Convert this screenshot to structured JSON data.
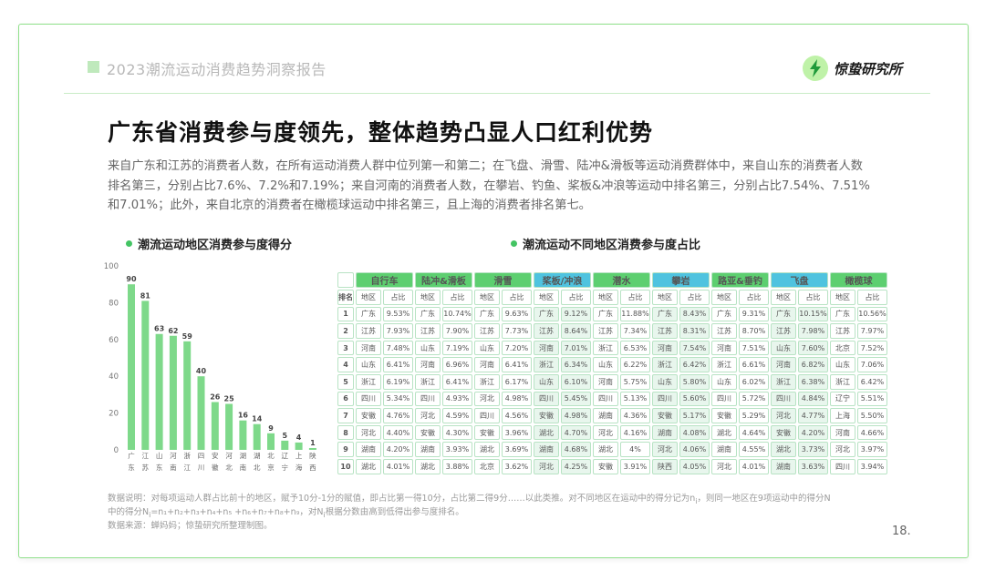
{
  "header": {
    "title": "2023潮流运动消费趋势洞察报告",
    "logo_text": "惊蛰研究所"
  },
  "main": {
    "title": "广东省消费参与度领先，整体趋势凸显人口红利优势",
    "body": "来自广东和江苏的消费者人数，在所有运动消费人群中位列第一和第二；在飞盘、滑雪、陆冲&滑板等运动消费群体中，来自山东的消费者人数排名第三，分别占比7.6%、7.2%和7.19%；来自河南的消费者人数，在攀岩、钓鱼、桨板&冲浪等运动中排名第三，分别占比7.54%、7.51%和7.01%；此外，来自北京的消费者在橄榄球运动中排名第三，且上海的消费者排名第七。",
    "left_subtitle": "潮流运动地区消费参与度得分",
    "right_subtitle": "潮流运动不同地区消费参与度占比",
    "note_line1": "数据说明：对每项运动人群占比前十的地区，赋予10分-1分的赋值，即占比第一得10分，占比第二得9分……以此类推。对不同地区在运动中的得分记为n",
    "note_sub_i": "i",
    "note_line1b": "，则同一地区在9项运动中的得分N",
    "note_line2": "=n₁+n₂+n₃+n₄+n₅ +n₆+n₇+n₈+n₉，对N",
    "note_line2b": "根据分数由高到低得出参与度排名。",
    "source": "数据来源：蝉妈妈；惊蛰研究所整理制图。",
    "page_number": "18."
  },
  "colors": {
    "accent": "#43c463",
    "bar": "#7ed98a",
    "tier1": "#5dcf70",
    "tier2": "#4fc3df"
  },
  "chart_data": [
    {
      "type": "bar",
      "title": "潮流运动地区消费参与度得分",
      "categories": [
        "广东",
        "江苏",
        "山东",
        "河南",
        "浙江",
        "四川",
        "安徽",
        "河北",
        "湖南",
        "湖北",
        "北京",
        "辽宁",
        "上海",
        "陕西"
      ],
      "category_lines": [
        [
          "广",
          "东"
        ],
        [
          "江",
          "苏"
        ],
        [
          "山",
          "东"
        ],
        [
          "河",
          "南"
        ],
        [
          "浙",
          "江"
        ],
        [
          "四",
          "川"
        ],
        [
          "安",
          "徽"
        ],
        [
          "河",
          "北"
        ],
        [
          "湖",
          "南"
        ],
        [
          "湖",
          "北"
        ],
        [
          "北",
          "京"
        ],
        [
          "辽",
          "宁"
        ],
        [
          "上",
          "海"
        ],
        [
          "陕",
          "西"
        ]
      ],
      "values": [
        90,
        81,
        63,
        62,
        59,
        40,
        26,
        25,
        16,
        14,
        9,
        5,
        4,
        1
      ],
      "ylim": [
        0,
        100
      ],
      "yticks": [
        0,
        20,
        40,
        60,
        80,
        100
      ]
    },
    {
      "type": "table",
      "title": "潮流运动不同地区消费参与度占比",
      "rank_header": "排名",
      "region_header": "地区",
      "share_header": "占比",
      "categories": [
        {
          "name": "自行车",
          "tier": 1
        },
        {
          "name": "陆冲&滑板",
          "tier": 1
        },
        {
          "name": "滑雪",
          "tier": 1
        },
        {
          "name": "桨板/冲浪",
          "tier": 2
        },
        {
          "name": "潜水",
          "tier": 1
        },
        {
          "name": "攀岩",
          "tier": 2
        },
        {
          "name": "路亚&垂钓",
          "tier": 1
        },
        {
          "name": "飞盘",
          "tier": 2
        },
        {
          "name": "橄榄球",
          "tier": 1
        }
      ],
      "rows": [
        {
          "rank": "1",
          "cells": [
            [
              "广东",
              "9.53%"
            ],
            [
              "广东",
              "10.74%"
            ],
            [
              "广东",
              "9.63%"
            ],
            [
              "广东",
              "9.12%"
            ],
            [
              "广东",
              "11.88%"
            ],
            [
              "广东",
              "8.43%"
            ],
            [
              "广东",
              "9.31%"
            ],
            [
              "广东",
              "10.15%"
            ],
            [
              "广东",
              "10.56%"
            ]
          ]
        },
        {
          "rank": "2",
          "cells": [
            [
              "江苏",
              "7.93%"
            ],
            [
              "江苏",
              "7.90%"
            ],
            [
              "江苏",
              "7.73%"
            ],
            [
              "江苏",
              "8.64%"
            ],
            [
              "江苏",
              "7.34%"
            ],
            [
              "江苏",
              "8.31%"
            ],
            [
              "江苏",
              "8.70%"
            ],
            [
              "江苏",
              "7.98%"
            ],
            [
              "江苏",
              "7.97%"
            ]
          ]
        },
        {
          "rank": "3",
          "cells": [
            [
              "河南",
              "7.48%"
            ],
            [
              "山东",
              "7.19%"
            ],
            [
              "山东",
              "7.20%"
            ],
            [
              "河南",
              "7.01%"
            ],
            [
              "浙江",
              "6.53%"
            ],
            [
              "河南",
              "7.54%"
            ],
            [
              "河南",
              "7.51%"
            ],
            [
              "山东",
              "7.60%"
            ],
            [
              "北京",
              "7.52%"
            ]
          ]
        },
        {
          "rank": "4",
          "cells": [
            [
              "山东",
              "6.41%"
            ],
            [
              "河南",
              "6.96%"
            ],
            [
              "河南",
              "6.41%"
            ],
            [
              "浙江",
              "6.34%"
            ],
            [
              "山东",
              "6.22%"
            ],
            [
              "浙江",
              "6.42%"
            ],
            [
              "浙江",
              "6.61%"
            ],
            [
              "河南",
              "6.82%"
            ],
            [
              "山东",
              "7.06%"
            ]
          ]
        },
        {
          "rank": "5",
          "cells": [
            [
              "浙江",
              "6.19%"
            ],
            [
              "浙江",
              "6.41%"
            ],
            [
              "浙江",
              "6.17%"
            ],
            [
              "山东",
              "6.10%"
            ],
            [
              "河南",
              "5.75%"
            ],
            [
              "山东",
              "5.80%"
            ],
            [
              "山东",
              "6.02%"
            ],
            [
              "浙江",
              "6.38%"
            ],
            [
              "浙江",
              "6.42%"
            ]
          ]
        },
        {
          "rank": "6",
          "cells": [
            [
              "四川",
              "5.34%"
            ],
            [
              "四川",
              "4.93%"
            ],
            [
              "河北",
              "4.98%"
            ],
            [
              "四川",
              "5.45%"
            ],
            [
              "四川",
              "5.13%"
            ],
            [
              "四川",
              "5.60%"
            ],
            [
              "四川",
              "5.72%"
            ],
            [
              "四川",
              "4.84%"
            ],
            [
              "辽宁",
              "5.51%"
            ]
          ]
        },
        {
          "rank": "7",
          "cells": [
            [
              "安徽",
              "4.76%"
            ],
            [
              "河北",
              "4.59%"
            ],
            [
              "四川",
              "4.56%"
            ],
            [
              "安徽",
              "4.98%"
            ],
            [
              "湖南",
              "4.36%"
            ],
            [
              "安徽",
              "5.17%"
            ],
            [
              "安徽",
              "5.29%"
            ],
            [
              "河北",
              "4.77%"
            ],
            [
              "上海",
              "5.50%"
            ]
          ]
        },
        {
          "rank": "8",
          "cells": [
            [
              "河北",
              "4.40%"
            ],
            [
              "安徽",
              "4.30%"
            ],
            [
              "安徽",
              "3.96%"
            ],
            [
              "湖北",
              "4.70%"
            ],
            [
              "河北",
              "4.16%"
            ],
            [
              "湖南",
              "4.08%"
            ],
            [
              "湖北",
              "4.64%"
            ],
            [
              "安徽",
              "4.20%"
            ],
            [
              "河南",
              "4.66%"
            ]
          ]
        },
        {
          "rank": "9",
          "cells": [
            [
              "湖南",
              "4.20%"
            ],
            [
              "湖南",
              "3.93%"
            ],
            [
              "湖北",
              "3.69%"
            ],
            [
              "湖南",
              "4.68%"
            ],
            [
              "湖北",
              "4%"
            ],
            [
              "河北",
              "4.06%"
            ],
            [
              "湖南",
              "4.55%"
            ],
            [
              "湖北",
              "3.73%"
            ],
            [
              "河北",
              "3.97%"
            ]
          ]
        },
        {
          "rank": "10",
          "cells": [
            [
              "湖北",
              "4.01%"
            ],
            [
              "湖北",
              "3.88%"
            ],
            [
              "北京",
              "3.62%"
            ],
            [
              "河北",
              "4.25%"
            ],
            [
              "安徽",
              "3.91%"
            ],
            [
              "陕西",
              "4.05%"
            ],
            [
              "河北",
              "4.01%"
            ],
            [
              "湖南",
              "3.63%"
            ],
            [
              "四川",
              "3.94%"
            ]
          ]
        }
      ]
    }
  ]
}
